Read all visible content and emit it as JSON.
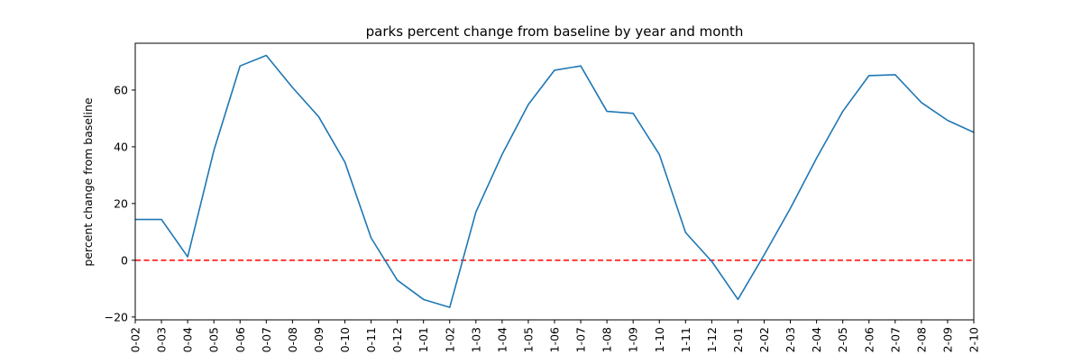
{
  "chart_data": {
    "type": "line",
    "title": "parks percent change from baseline by year and month",
    "xlabel": "",
    "ylabel": "percent change from baseline",
    "categories": [
      "0-02",
      "0-03",
      "0-04",
      "0-05",
      "0-06",
      "0-07",
      "0-08",
      "0-09",
      "0-10",
      "0-11",
      "0-12",
      "1-01",
      "1-02",
      "1-03",
      "1-04",
      "1-05",
      "1-06",
      "1-07",
      "1-08",
      "1-09",
      "1-10",
      "1-11",
      "1-12",
      "2-01",
      "2-02",
      "2-03",
      "2-04",
      "2-05",
      "2-06",
      "2-07",
      "2-08",
      "2-09",
      "2-10"
    ],
    "series": [
      {
        "values": [
          14.4,
          14.4,
          1.2,
          38.7,
          68.5,
          72.2,
          60.9,
          50.6,
          34.6,
          7.9,
          -7.0,
          -13.8,
          -16.6,
          17.0,
          37.3,
          54.9,
          67.0,
          68.5,
          52.5,
          51.8,
          37.3,
          9.8,
          -0.4,
          -13.8,
          1.9,
          18.3,
          36.0,
          52.5,
          65.1,
          65.4,
          55.6,
          49.3,
          45.1
        ],
        "color": "#1f77b4"
      }
    ],
    "baseline": {
      "y": 0,
      "color": "#ff0000",
      "style": "dashed"
    },
    "ylim": [
      -21,
      76.5
    ],
    "yticks": [
      -20,
      0,
      20,
      40,
      60
    ],
    "grid": false,
    "legend": "none"
  }
}
